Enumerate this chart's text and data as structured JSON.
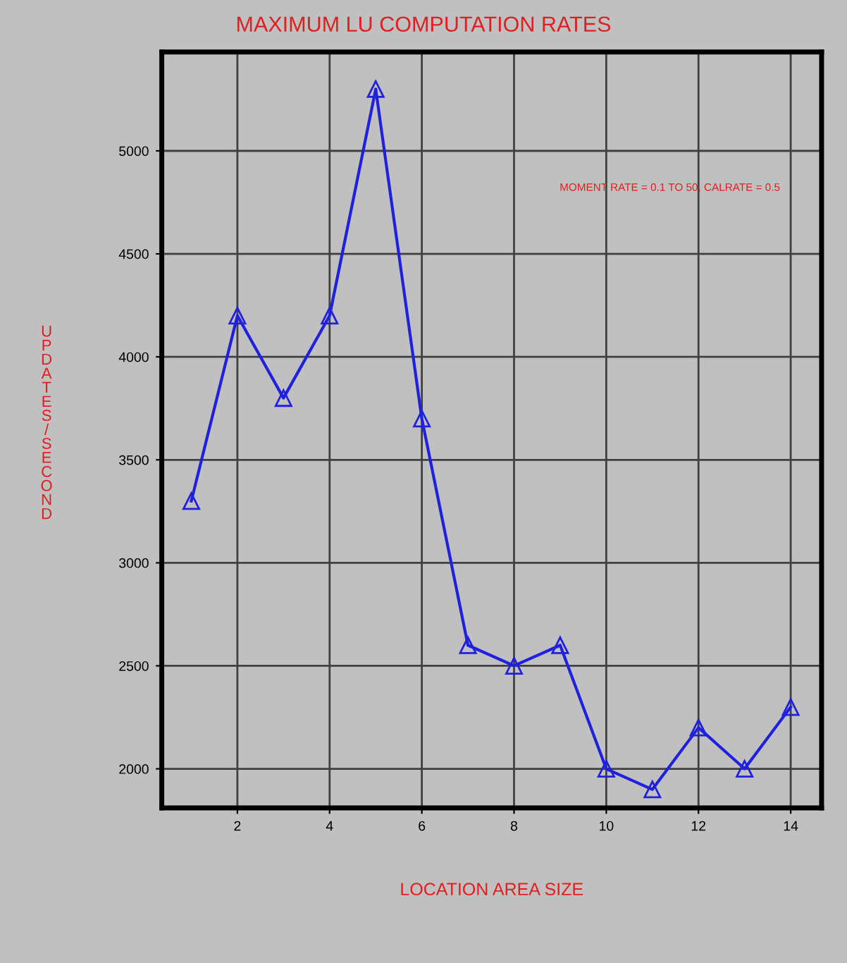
{
  "chart_data": {
    "type": "line",
    "title": "MAXIMUM LU COMPUTATION RATES",
    "xlabel": "LOCATION AREA SIZE",
    "ylabel": "UPDATES/SECOND",
    "annotations": [
      "MOMENT RATE = 0.1 TO 50, CALRATE = 0.5"
    ],
    "x": [
      1,
      2,
      3,
      4,
      5,
      6,
      7,
      8,
      9,
      10,
      11,
      12,
      13,
      14
    ],
    "series": [
      {
        "color": "#2020e0",
        "values": [
          3300,
          4200,
          3800,
          4200,
          5300,
          3700,
          2600,
          2500,
          2600,
          2000,
          1900,
          2200,
          2000,
          2300
        ]
      }
    ],
    "xlim": [
      0.36,
      14.67
    ],
    "xticks": [
      2,
      4,
      6,
      8,
      10,
      12,
      14
    ],
    "ylim": [
      1810,
      5480
    ],
    "yticks": [
      2000,
      2500,
      3000,
      3500,
      4000,
      4500,
      5000
    ],
    "grid": true,
    "marker": "triangle",
    "line_style": "solid"
  }
}
